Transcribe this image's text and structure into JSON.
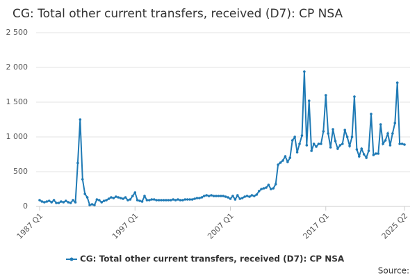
{
  "chart_data": {
    "type": "line",
    "title": "CG: Total other current transfers, received (D7): CP NSA",
    "source": "Source:",
    "categories": [
      "1987 Q1",
      null,
      null,
      null,
      null,
      null,
      null,
      null,
      null,
      null,
      null,
      null,
      null,
      null,
      null,
      null,
      null,
      null,
      null,
      null,
      null,
      null,
      null,
      null,
      null,
      null,
      null,
      null,
      null,
      null,
      null,
      null,
      null,
      null,
      null,
      null,
      null,
      null,
      null,
      null,
      "1997 Q1",
      null,
      null,
      null,
      null,
      null,
      null,
      null,
      null,
      null,
      null,
      null,
      null,
      null,
      null,
      null,
      null,
      null,
      null,
      null,
      null,
      null,
      null,
      null,
      null,
      null,
      null,
      null,
      null,
      null,
      null,
      null,
      null,
      null,
      null,
      null,
      null,
      null,
      null,
      null,
      "2007 Q1",
      null,
      null,
      null,
      null,
      null,
      null,
      null,
      null,
      null,
      null,
      null,
      null,
      null,
      null,
      null,
      null,
      null,
      null,
      null,
      null,
      null,
      null,
      null,
      null,
      null,
      null,
      null,
      null,
      null,
      null,
      null,
      null,
      null,
      null,
      null,
      null,
      null,
      null,
      null,
      "2017 Q1",
      null,
      null,
      null,
      null,
      null,
      null,
      null,
      null,
      null,
      null,
      null,
      null,
      null,
      null,
      null,
      null,
      null,
      null,
      null,
      null,
      null,
      null,
      null,
      null,
      null,
      null,
      null,
      null,
      null,
      null,
      null,
      null,
      "2025 Q2"
    ],
    "series": [
      {
        "name": "CG: Total other current transfers, received (D7): CP NSA",
        "color": "#1f7ab5",
        "values": [
          90,
          70,
          60,
          70,
          80,
          60,
          90,
          50,
          50,
          70,
          60,
          80,
          60,
          50,
          90,
          60,
          625,
          1250,
          390,
          180,
          130,
          20,
          30,
          20,
          100,
          90,
          60,
          80,
          90,
          110,
          130,
          120,
          140,
          130,
          120,
          110,
          130,
          90,
          100,
          150,
          200,
          90,
          80,
          70,
          150,
          90,
          90,
          100,
          100,
          90,
          90,
          90,
          90,
          90,
          90,
          90,
          100,
          90,
          100,
          90,
          90,
          100,
          100,
          100,
          100,
          110,
          120,
          120,
          130,
          150,
          160,
          150,
          160,
          150,
          150,
          150,
          150,
          150,
          140,
          130,
          110,
          150,
          100,
          160,
          110,
          120,
          140,
          150,
          140,
          160,
          150,
          170,
          220,
          250,
          260,
          270,
          310,
          250,
          260,
          320,
          600,
          630,
          660,
          720,
          640,
          700,
          950,
          1000,
          780,
          900,
          1020,
          1940,
          880,
          1520,
          800,
          900,
          860,
          900,
          900,
          1080,
          1600,
          1050,
          850,
          1110,
          940,
          830,
          880,
          900,
          1100,
          1000,
          870,
          1000,
          1580,
          820,
          720,
          830,
          750,
          700,
          800,
          1330,
          740,
          760,
          760,
          1180,
          900,
          950,
          1050,
          880,
          1050,
          1200,
          1780,
          900,
          900,
          890
        ]
      }
    ],
    "ylim": [
      0,
      2500
    ],
    "yticks": [
      0,
      500,
      {
        "value": 1000,
        "label": "1 000"
      },
      {
        "value": 1500,
        "label": "1 500"
      },
      {
        "value": 2000,
        "label": "2 000"
      },
      {
        "value": 2500,
        "label": "2 500"
      }
    ],
    "grid": true
  }
}
